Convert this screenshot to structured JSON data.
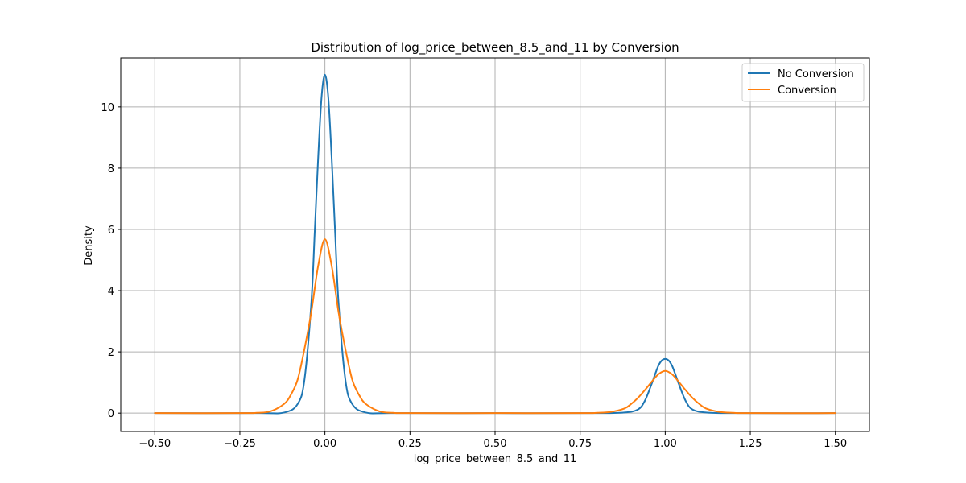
{
  "chart_data": {
    "type": "line",
    "title": "Distribution of log_price_between_8.5_and_11 by Conversion",
    "xlabel": "log_price_between_8.5_and_11",
    "ylabel": "Density",
    "xlim": [
      -0.6,
      1.6
    ],
    "ylim": [
      -0.6,
      11.6
    ],
    "grid": true,
    "legend_position": "top-right",
    "x_ticks": [
      -0.5,
      -0.25,
      0.0,
      0.25,
      0.5,
      0.75,
      1.0,
      1.25,
      1.5
    ],
    "x_tick_labels": [
      "−0.50",
      "−0.25",
      "0.00",
      "0.25",
      "0.50",
      "0.75",
      "1.00",
      "1.25",
      "1.50"
    ],
    "y_ticks": [
      0,
      2,
      4,
      6,
      8,
      10
    ],
    "y_tick_labels": [
      "0",
      "2",
      "4",
      "6",
      "8",
      "10"
    ],
    "series": [
      {
        "name": "No Conversion",
        "color": "#1f77b4",
        "x": [
          -0.5,
          -0.2,
          -0.12,
          -0.08,
          -0.06,
          -0.04,
          -0.03,
          -0.02,
          -0.01,
          0.0,
          0.01,
          0.02,
          0.03,
          0.04,
          0.06,
          0.08,
          0.12,
          0.2,
          0.5,
          0.8,
          0.88,
          0.92,
          0.94,
          0.96,
          0.97,
          0.98,
          0.99,
          1.0,
          1.01,
          1.02,
          1.03,
          1.04,
          1.06,
          1.08,
          1.12,
          1.2,
          1.5
        ],
        "y": [
          0.0,
          0.0,
          0.02,
          0.3,
          1.1,
          3.6,
          5.9,
          8.3,
          10.3,
          11.05,
          10.3,
          8.3,
          5.9,
          3.6,
          1.1,
          0.3,
          0.02,
          0.0,
          0.0,
          0.0,
          0.02,
          0.12,
          0.4,
          0.95,
          1.26,
          1.55,
          1.72,
          1.77,
          1.72,
          1.55,
          1.26,
          0.95,
          0.4,
          0.12,
          0.02,
          0.0,
          0.0
        ]
      },
      {
        "name": "Conversion",
        "color": "#ff7f0e",
        "x": [
          -0.5,
          -0.25,
          -0.2,
          -0.16,
          -0.12,
          -0.1,
          -0.08,
          -0.06,
          -0.04,
          -0.02,
          0.0,
          0.02,
          0.04,
          0.06,
          0.08,
          0.1,
          0.12,
          0.16,
          0.2,
          0.25,
          0.5,
          0.75,
          0.8,
          0.84,
          0.88,
          0.9,
          0.92,
          0.94,
          0.96,
          0.98,
          1.0,
          1.02,
          1.04,
          1.06,
          1.08,
          1.1,
          1.12,
          1.16,
          1.2,
          1.25,
          1.5
        ],
        "y": [
          0.0,
          0.0,
          0.01,
          0.06,
          0.3,
          0.6,
          1.1,
          2.1,
          3.3,
          4.8,
          5.68,
          4.8,
          3.3,
          2.1,
          1.1,
          0.6,
          0.3,
          0.06,
          0.01,
          0.0,
          0.0,
          0.0,
          0.01,
          0.04,
          0.15,
          0.3,
          0.5,
          0.75,
          1.02,
          1.27,
          1.38,
          1.27,
          1.02,
          0.75,
          0.5,
          0.3,
          0.15,
          0.04,
          0.01,
          0.0,
          0.0
        ]
      }
    ]
  }
}
